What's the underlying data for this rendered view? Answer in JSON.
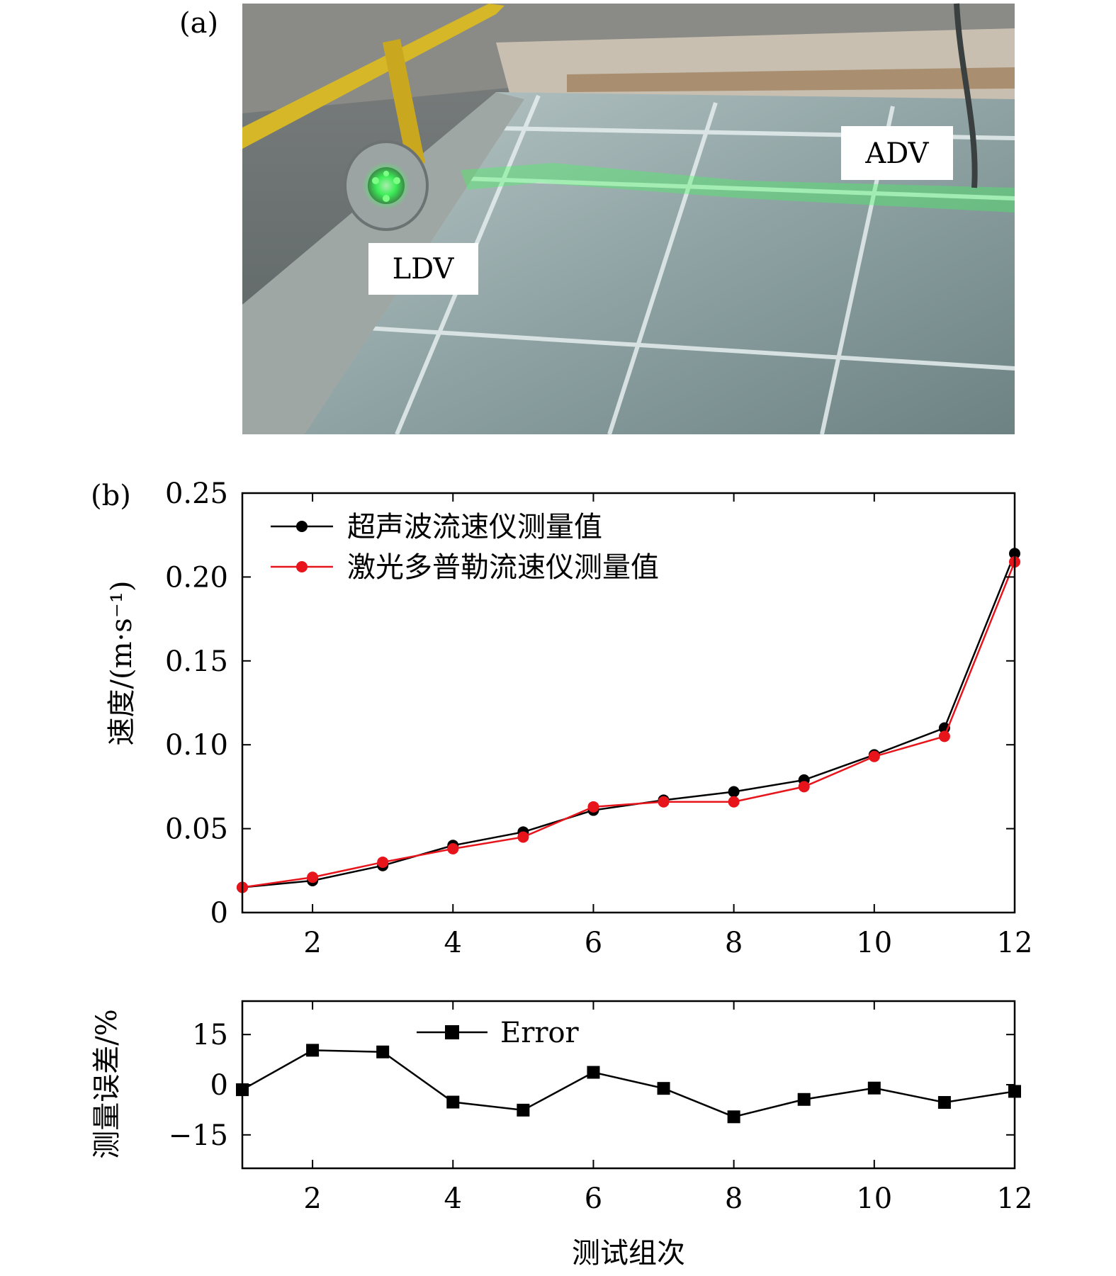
{
  "panel_a": {
    "label": "(a)",
    "callouts": {
      "ldv": "LDV",
      "adv": "ADV"
    }
  },
  "panel_b": {
    "label": "(b)"
  },
  "colors": {
    "ultrasonic": "#000000",
    "laser": "#e8141c",
    "error": "#000000",
    "laser_beam": "#3cff5a"
  },
  "chart_data": [
    {
      "type": "line",
      "ylabel": "速度/(m·s⁻¹)",
      "xlabel": "",
      "xlim": [
        1,
        12
      ],
      "ylim": [
        0,
        0.25
      ],
      "xticks": [
        "2",
        "4",
        "6",
        "8",
        "10",
        "12"
      ],
      "yticks": [
        "0",
        "0.05",
        "0.10",
        "0.15",
        "0.20",
        "0.25"
      ],
      "legend": "top-left",
      "x": [
        1,
        2,
        3,
        4,
        5,
        6,
        7,
        8,
        9,
        10,
        11,
        12
      ],
      "series": [
        {
          "name": "超声波流速仪测量值",
          "marker": "circle",
          "values": [
            0.015,
            0.019,
            0.028,
            0.04,
            0.048,
            0.061,
            0.067,
            0.072,
            0.079,
            0.094,
            0.11,
            0.214
          ]
        },
        {
          "name": "激光多普勒流速仪测量值",
          "marker": "circle",
          "values": [
            0.015,
            0.021,
            0.03,
            0.038,
            0.045,
            0.063,
            0.066,
            0.066,
            0.075,
            0.093,
            0.105,
            0.209
          ]
        }
      ]
    },
    {
      "type": "line",
      "ylabel": "测量误差/%",
      "xlabel": "测试组次",
      "xlim": [
        1,
        12
      ],
      "ylim": [
        -25,
        25
      ],
      "xticks": [
        "2",
        "4",
        "6",
        "8",
        "10",
        "12"
      ],
      "yticks": [
        "15",
        "0",
        "−15"
      ],
      "ytick_values": [
        15,
        0,
        -15
      ],
      "legend": "top",
      "x": [
        1,
        2,
        3,
        4,
        5,
        6,
        7,
        8,
        9,
        10,
        11,
        12
      ],
      "series": [
        {
          "name": "Error",
          "marker": "square",
          "values": [
            -1.5,
            10.3,
            9.8,
            -5.2,
            -7.6,
            3.7,
            -1.1,
            -9.6,
            -4.4,
            -1.0,
            -5.3,
            -2.0
          ]
        }
      ]
    }
  ]
}
